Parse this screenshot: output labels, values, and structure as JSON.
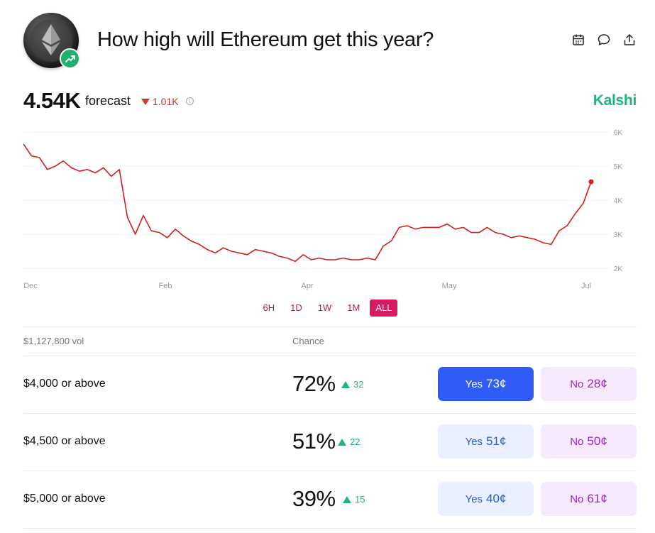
{
  "header": {
    "title": "How high will Ethereum get this year?",
    "icons": [
      "calendar-icon",
      "comment-icon",
      "share-icon"
    ]
  },
  "forecast": {
    "value": "4.54K",
    "label": "forecast",
    "delta": "1.01K",
    "delta_direction": "down",
    "info_icon": "info-icon"
  },
  "brand": {
    "name": "Kalshi",
    "color": "#1ab87a"
  },
  "chart_data": {
    "type": "line",
    "x_labels": [
      "Dec",
      "Feb",
      "Apr",
      "May",
      "Jul"
    ],
    "y_ticks": [
      "6K",
      "5K",
      "4K",
      "3K",
      "2K"
    ],
    "ylim": [
      2000,
      6000
    ],
    "grid": true,
    "line_color": "#d01f1f",
    "series": [
      {
        "values": [
          5650,
          5300,
          5250,
          4900,
          5000,
          5150,
          4950,
          4850,
          4900,
          4800,
          4950,
          4700,
          4900,
          3500,
          3000,
          3550,
          3100,
          3050,
          2900,
          3150,
          2950,
          2800,
          2700,
          2550,
          2450,
          2600,
          2500,
          2450,
          2400,
          2550,
          2500,
          2450,
          2350,
          2300,
          2200,
          2400,
          2250,
          2300,
          2250,
          2250,
          2300,
          2250,
          2250,
          2300,
          2250,
          2650,
          2800,
          3200,
          3250,
          3150,
          3200,
          3200,
          3200,
          3300,
          3150,
          3200,
          3050,
          3050,
          3200,
          3050,
          3000,
          2900,
          2950,
          2900,
          2850,
          2750,
          2700,
          3100,
          3250,
          3600,
          3900,
          4540
        ]
      }
    ]
  },
  "time_ranges": [
    "6H",
    "1D",
    "1W",
    "1M",
    "ALL"
  ],
  "active_range": "ALL",
  "table": {
    "volume": "$1,127,800 vol",
    "chance_header": "Chance",
    "rows": [
      {
        "label": "$4,000 or above",
        "chance": "72%",
        "change": "32",
        "yes_word": "Yes",
        "yes_price": "73¢",
        "no_word": "No",
        "no_price": "28¢"
      },
      {
        "label": "$4,500 or above",
        "chance": "51%",
        "change": "22",
        "yes_word": "Yes",
        "yes_price": "51¢",
        "no_word": "No",
        "no_price": "50¢"
      },
      {
        "label": "$5,000 or above",
        "chance": "39%",
        "change": "15",
        "yes_word": "Yes",
        "yes_price": "40¢",
        "no_word": "No",
        "no_price": "61¢"
      }
    ]
  }
}
